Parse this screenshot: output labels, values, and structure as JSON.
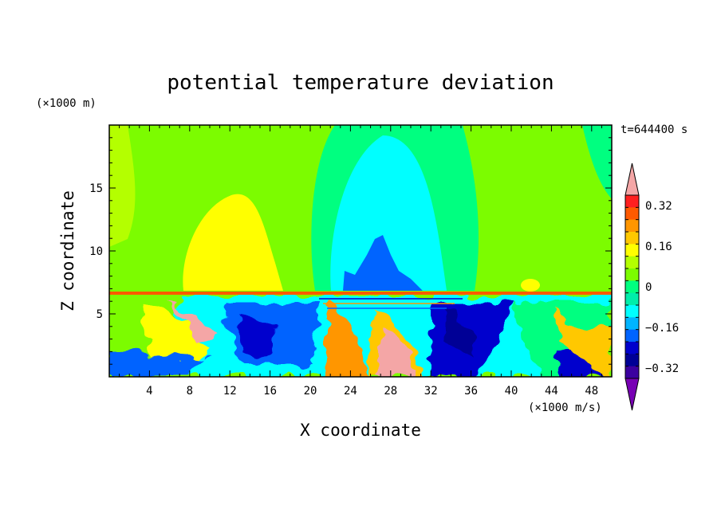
{
  "chart_data": {
    "type": "contour",
    "title": "potential temperature deviation",
    "xlabel": "X coordinate",
    "ylabel": "Z coordinate",
    "x_unit": "(×1000 m/s)",
    "y_unit": "(×1000 m)",
    "time_label": "t=644400 s",
    "xlim": [
      0,
      50
    ],
    "ylim": [
      0,
      20
    ],
    "x_ticks": [
      4,
      8,
      12,
      16,
      20,
      24,
      28,
      32,
      36,
      40,
      44,
      48
    ],
    "x_tick_labels": [
      "4",
      "8",
      "12",
      "16",
      "20",
      "24",
      "28",
      "32",
      "36",
      "40",
      "44",
      "48"
    ],
    "y_ticks": [
      5,
      10,
      15
    ],
    "y_tick_labels": [
      "5",
      "10",
      "15"
    ],
    "colorbar": {
      "levels": [
        -0.4,
        -0.36,
        -0.32,
        -0.28,
        -0.24,
        -0.2,
        -0.16,
        -0.12,
        -0.08,
        -0.04,
        0,
        0.04,
        0.08,
        0.12,
        0.16,
        0.2,
        0.24,
        0.28,
        0.32,
        0.36,
        0.4
      ],
      "label_values": [
        0.32,
        0.16,
        0,
        -0.16,
        -0.32
      ],
      "labels": [
        "0.32",
        "0.16",
        "0",
        "−0.16",
        "−0.32"
      ],
      "colors_top_to_bottom": [
        "#f4a6a6",
        "#ff2020",
        "#ff5a00",
        "#ff9600",
        "#ffc800",
        "#ffff00",
        "#b4ff00",
        "#7cfc00",
        "#00ff80",
        "#00eeaa",
        "#00ffff",
        "#00b4ff",
        "#0064ff",
        "#0000cd",
        "#000096",
        "#3c00a0",
        "#7800b4"
      ]
    },
    "fields": {
      "upper_background": "#7cfc00",
      "warm_plume_left": {
        "x": [
          7,
          15
        ],
        "z": [
          6.8,
          15
        ],
        "color": "#ffff00"
      },
      "cold_plume_center": {
        "x": [
          21,
          33
        ],
        "z": [
          6.8,
          19
        ],
        "color": "#00ffff"
      },
      "cold_core_center": {
        "x": [
          23,
          30
        ],
        "z": [
          6.8,
          11
        ],
        "color": "#0064ff"
      },
      "lower_layer_top_z": 6.7
    }
  }
}
